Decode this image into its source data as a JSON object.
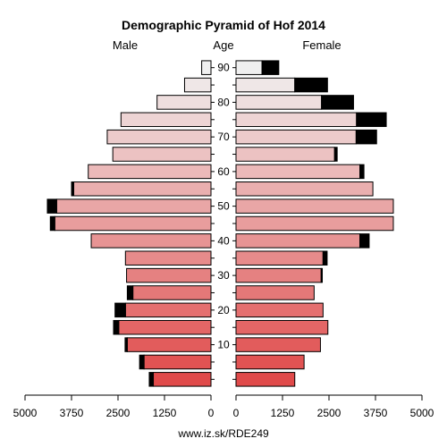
{
  "chart_data": {
    "type": "bar",
    "title": "Demographic Pyramid of Hof 2014",
    "left_label": "Male",
    "center_label": "Age",
    "right_label": "Female",
    "footer": "www.iz.sk/RDE249",
    "x_ticks_left": [
      "5000",
      "3750",
      "2500",
      "1250",
      "0"
    ],
    "x_ticks_right": [
      "0",
      "1250",
      "2500",
      "3750",
      "5000"
    ],
    "x_tick_values": [
      0,
      1250,
      2500,
      3750,
      5000
    ],
    "age_ticks": [
      "10",
      "20",
      "30",
      "40",
      "50",
      "60",
      "70",
      "80",
      "90"
    ],
    "xlim": [
      0,
      5000
    ],
    "age_groups": [
      "0-4",
      "5-9",
      "10-14",
      "15-19",
      "20-24",
      "25-29",
      "30-34",
      "35-39",
      "40-44",
      "45-49",
      "50-54",
      "55-59",
      "60-64",
      "65-69",
      "70-74",
      "75-79",
      "80-84",
      "85-89",
      "90+"
    ],
    "series": [
      {
        "name": "Male",
        "values": [
          1550,
          1800,
          2250,
          2480,
          2300,
          2100,
          2270,
          2300,
          3220,
          4200,
          4150,
          3690,
          3300,
          2640,
          2790,
          2420,
          1450,
          710,
          250
        ],
        "surplus": [
          110,
          120,
          60,
          140,
          280,
          150,
          0,
          0,
          0,
          120,
          250,
          60,
          0,
          0,
          0,
          0,
          0,
          0,
          0
        ]
      },
      {
        "name": "Female",
        "values": [
          1580,
          1830,
          2270,
          2470,
          2340,
          2100,
          2290,
          2340,
          3330,
          4230,
          4230,
          3680,
          3330,
          2650,
          3230,
          3240,
          2300,
          1580,
          700
        ],
        "surplus": [
          0,
          0,
          0,
          0,
          0,
          0,
          30,
          110,
          250,
          0,
          0,
          0,
          110,
          70,
          550,
          800,
          860,
          880,
          450
        ]
      }
    ],
    "colors": {
      "bar_low": "#e04a4a",
      "bar_high": "#f0f0f0",
      "surplus": "#000000",
      "outline": "#000000"
    }
  }
}
